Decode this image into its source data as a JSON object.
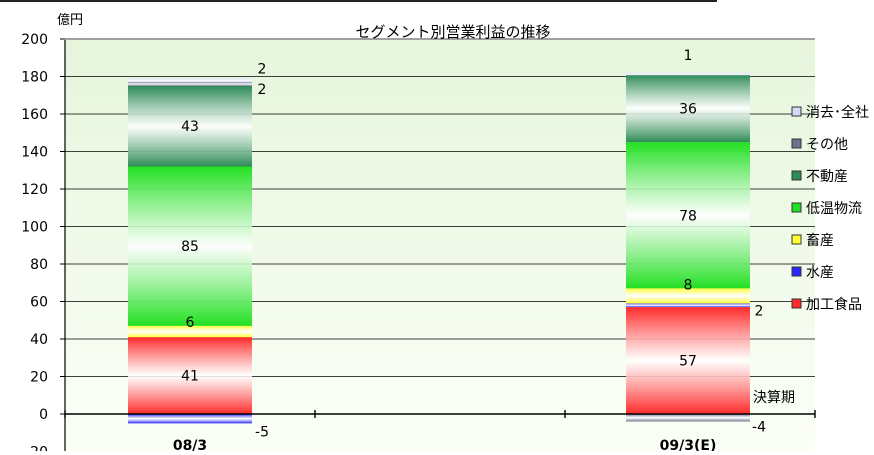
{
  "chart_data": {
    "type": "bar",
    "stacked": true,
    "title": "セグメント別営業利益の推移",
    "unit_label": "億円",
    "xlabel": "決算期",
    "ylabel": "",
    "ylim": [
      -20,
      200
    ],
    "yticks": [
      -20,
      0,
      20,
      40,
      60,
      80,
      100,
      120,
      140,
      160,
      180,
      200
    ],
    "ytick_labels": [
      "-20",
      "0",
      "20",
      "40",
      "60",
      "80",
      "100",
      "120",
      "140",
      "160",
      "180",
      "200"
    ],
    "grid": true,
    "legend_position": "right",
    "categories": [
      "08/3",
      "09/3(E)"
    ],
    "series": [
      {
        "name": "加工食品",
        "values": [
          41,
          57
        ],
        "color": "#ff2a2a"
      },
      {
        "name": "水産",
        "values": [
          -5,
          2
        ],
        "color": "#2a2aff"
      },
      {
        "name": "畜産",
        "values": [
          6,
          8
        ],
        "color": "#ffff33"
      },
      {
        "name": "低温物流",
        "values": [
          85,
          78
        ],
        "color": "#22e022"
      },
      {
        "name": "不動産",
        "values": [
          43,
          36
        ],
        "color": "#2e8b57"
      },
      {
        "name": "その他",
        "values": [
          2,
          -4
        ],
        "color": "#707090"
      },
      {
        "name": "消去･全社",
        "values": [
          2,
          1
        ],
        "color": "#d8d8f4"
      }
    ],
    "value_labels": [
      [
        "41",
        "-5",
        "6",
        "85",
        "43",
        "2",
        "2"
      ],
      [
        "57",
        "2",
        "8",
        "78",
        "36",
        "-4",
        "1"
      ]
    ]
  }
}
